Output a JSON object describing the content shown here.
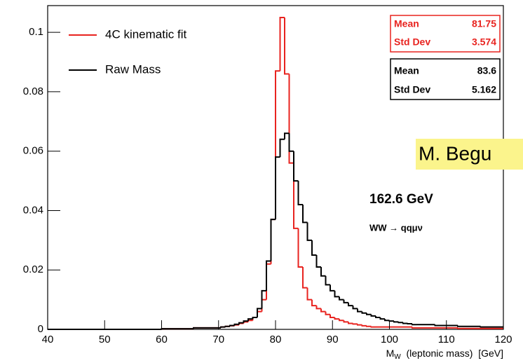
{
  "chart_data": {
    "type": "histogram",
    "bins": [
      40,
      40.8,
      41.6,
      42.4,
      43.2,
      44,
      44.8,
      45.6,
      46.4,
      47.2,
      48,
      48.8,
      49.6,
      50.4,
      51.2,
      52,
      52.8,
      53.6,
      54.4,
      55.2,
      56,
      56.8,
      57.6,
      58.4,
      59.2,
      60,
      60.8,
      61.6,
      62.4,
      63.2,
      64,
      64.8,
      65.6,
      66.4,
      67.2,
      68,
      68.8,
      69.6,
      70.4,
      71.2,
      72,
      72.8,
      73.6,
      74.4,
      75.2,
      76,
      76.8,
      77.6,
      78.4,
      79.2,
      80,
      80.8,
      81.6,
      82.4,
      83.2,
      84,
      84.8,
      85.6,
      86.4,
      87.2,
      88,
      88.8,
      89.6,
      90.4,
      91.2,
      92,
      92.8,
      93.6,
      94.4,
      95.2,
      96,
      96.8,
      97.6,
      98.4,
      99.2,
      100,
      100.8,
      101.6,
      102.4,
      103.2,
      104,
      104.8,
      105.6,
      106.4,
      107.2,
      108,
      108.8,
      109.6,
      110.4,
      111.2,
      112,
      112.8,
      113.6,
      114.4,
      115.2,
      116,
      116.8,
      117.6,
      118.4,
      119.2,
      120
    ],
    "series": [
      {
        "name": "4C kinematic fit",
        "color": "#e8231f",
        "mean": 81.75,
        "std_dev": 3.574,
        "values": [
          0,
          0,
          0,
          0,
          0,
          0,
          0,
          0,
          0,
          0,
          0,
          0,
          0,
          0,
          0,
          0,
          0,
          0,
          0,
          0,
          0,
          0,
          0,
          0,
          0,
          0.0002,
          0.0002,
          0.0002,
          0.0002,
          0.0002,
          0.0002,
          0.0002,
          0.0005,
          0.0005,
          0.0005,
          0.0005,
          0.0005,
          0.0005,
          0.0008,
          0.001,
          0.0012,
          0.0015,
          0.002,
          0.0025,
          0.003,
          0.004,
          0.006,
          0.01,
          0.022,
          0.037,
          0.087,
          0.105,
          0.086,
          0.056,
          0.034,
          0.021,
          0.014,
          0.01,
          0.008,
          0.007,
          0.006,
          0.005,
          0.004,
          0.0035,
          0.003,
          0.0025,
          0.002,
          0.0018,
          0.0015,
          0.0012,
          0.001,
          0.0008,
          0.0008,
          0.0008,
          0.0008,
          0.0008,
          0.0008,
          0.0008,
          0.0008,
          0.0008,
          0.0005,
          0.0005,
          0.0005,
          0.0005,
          0.0005,
          0.0005,
          0.0005,
          0.0005,
          0.0005,
          0.0005,
          0.0003,
          0.0003,
          0.0003,
          0.0003,
          0.0003,
          0.0003,
          0.0003,
          0.0003,
          0.0003,
          0.0003
        ]
      },
      {
        "name": "Raw Mass",
        "color": "#000000",
        "mean": 83.6,
        "std_dev": 5.162,
        "values": [
          0,
          0,
          0,
          0,
          0,
          0,
          0,
          0,
          0,
          0,
          0,
          0,
          0,
          0,
          0,
          0,
          0,
          0,
          0,
          0,
          0,
          0,
          0,
          0,
          0,
          0.0002,
          0.0002,
          0.0002,
          0.0002,
          0.0002,
          0.0002,
          0.0002,
          0.0005,
          0.0005,
          0.0005,
          0.0005,
          0.0005,
          0.0005,
          0.0008,
          0.001,
          0.0013,
          0.0017,
          0.0022,
          0.0028,
          0.0035,
          0.004,
          0.007,
          0.013,
          0.023,
          0.037,
          0.058,
          0.064,
          0.066,
          0.06,
          0.05,
          0.042,
          0.036,
          0.03,
          0.025,
          0.021,
          0.018,
          0.015,
          0.013,
          0.011,
          0.01,
          0.009,
          0.008,
          0.007,
          0.006,
          0.0055,
          0.005,
          0.0045,
          0.004,
          0.0035,
          0.003,
          0.0028,
          0.0025,
          0.0023,
          0.002,
          0.0019,
          0.0016,
          0.0016,
          0.0016,
          0.0016,
          0.0016,
          0.0013,
          0.0013,
          0.0013,
          0.0013,
          0.0013,
          0.001,
          0.001,
          0.001,
          0.001,
          0.001,
          0.0008,
          0.0008,
          0.0008,
          0.0008,
          0.0008
        ]
      }
    ],
    "stat_labels": [
      "Mean",
      "Std Dev"
    ],
    "x_label": {
      "main": "M",
      "sub": "W",
      "rest": "  (leptonic mass)  [GeV]"
    },
    "annotations": [
      "162.6 GeV",
      "WW → qqμν"
    ],
    "overlay_text": "M. Begu",
    "xlim": [
      40,
      120
    ],
    "xticks": [
      40,
      50,
      60,
      70,
      80,
      90,
      100,
      110,
      120
    ],
    "ylim": [
      0,
      0.109
    ],
    "yticks": [
      0,
      0.02,
      0.04,
      0.06,
      0.08,
      0.1
    ],
    "grid": false
  }
}
